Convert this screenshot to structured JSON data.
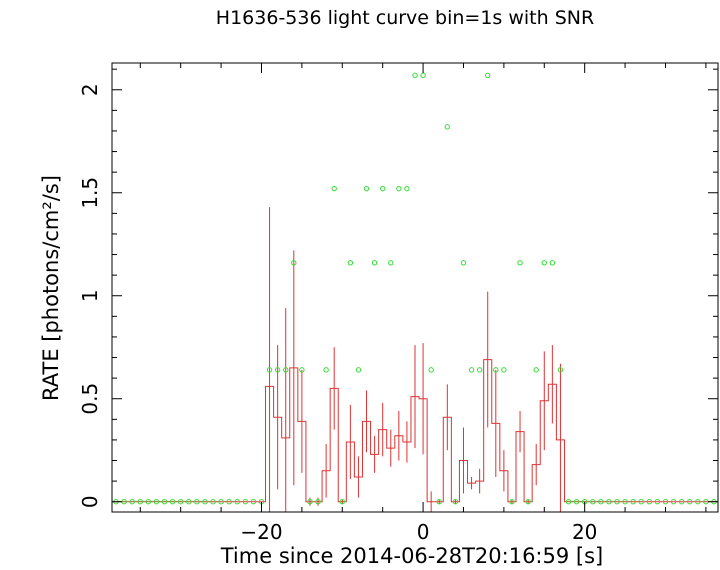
{
  "chart_data": {
    "type": "step-errorbar-scatter",
    "title": "H1636-536 light curve bin=1s with SNR",
    "xlabel": "Time since 2014-06-28T20:16:59 [s]",
    "ylabel": "RATE [photons/cm²/s]",
    "xlim": [
      -38.5,
      36.5
    ],
    "ylim": [
      -0.05,
      2.13
    ],
    "x_ticks": [
      -20,
      0,
      20
    ],
    "x_tick_labels": [
      "−20",
      "0",
      "20"
    ],
    "y_ticks": [
      0,
      0.5,
      1,
      1.5,
      2
    ],
    "y_tick_labels": [
      "0",
      "0.5",
      "1",
      "1.5",
      "2"
    ],
    "grid": false,
    "colors": {
      "rate": "#dd3333",
      "snr": "#33dd33",
      "axes": "#000000"
    },
    "series": [
      {
        "kind": "step-with-errorbars",
        "bin_width": 1,
        "x": [
          -19,
          -18,
          -17,
          -16,
          -15,
          -14,
          -13,
          -12,
          -11,
          -10,
          -9,
          -8,
          -7,
          -6,
          -5,
          -4,
          -3,
          -2,
          -1,
          0,
          1,
          2,
          3,
          4,
          5,
          6,
          7,
          8,
          9,
          10,
          11,
          12,
          13,
          14,
          15,
          16,
          17
        ],
        "values": [
          0.56,
          0.41,
          0.31,
          0.65,
          0.39,
          0.0,
          0.0,
          0.15,
          0.55,
          0.0,
          0.29,
          0.12,
          0.39,
          0.23,
          0.35,
          0.26,
          0.32,
          0.29,
          0.51,
          0.5,
          0.0,
          0.0,
          0.41,
          0.0,
          0.2,
          0.09,
          0.1,
          0.69,
          0.38,
          0.15,
          0.0,
          0.34,
          0.0,
          0.18,
          0.49,
          0.57,
          0.3
        ],
        "errors": [
          0.87,
          0.35,
          0.63,
          0.57,
          0.25,
          0.02,
          0.02,
          0.13,
          0.2,
          0.01,
          0.18,
          0.1,
          0.15,
          0.09,
          0.13,
          0.09,
          0.12,
          0.1,
          0.25,
          0.27,
          0.05,
          0.01,
          0.16,
          0.01,
          0.16,
          0.03,
          0.06,
          0.33,
          0.26,
          0.1,
          0.01,
          0.1,
          0.01,
          0.1,
          0.24,
          0.19,
          0.37
        ]
      },
      {
        "kind": "scatter",
        "marker": "open-circle",
        "x": [
          -38,
          -37,
          -36,
          -35,
          -34,
          -33,
          -32,
          -31,
          -30,
          -29,
          -28,
          -27,
          -26,
          -25,
          -24,
          -23,
          -22,
          -21,
          -20,
          -19,
          -18,
          -17,
          -16,
          -15,
          -14,
          -13,
          -12,
          -11,
          -10,
          -9,
          -8,
          -7,
          -6,
          -5,
          -4,
          -3,
          -2,
          -1,
          0,
          1,
          2,
          3,
          4,
          5,
          6,
          7,
          8,
          9,
          10,
          11,
          12,
          13,
          14,
          15,
          16,
          17,
          18,
          19,
          20,
          21,
          22,
          23,
          24,
          25,
          26,
          27,
          28,
          29,
          30,
          31,
          32,
          33,
          34,
          35,
          36
        ],
        "values": [
          0,
          0,
          0,
          0,
          0,
          0,
          0,
          0,
          0,
          0,
          0,
          0,
          0,
          0,
          0,
          0,
          0,
          0,
          0,
          0.64,
          0.64,
          0.64,
          1.16,
          0.64,
          0,
          0,
          0.64,
          1.52,
          0,
          1.16,
          0.64,
          1.52,
          1.16,
          1.52,
          1.16,
          1.52,
          1.52,
          2.07,
          2.07,
          0.64,
          0,
          1.82,
          0,
          1.16,
          0.64,
          0.64,
          2.07,
          0.64,
          0.64,
          0,
          1.16,
          0,
          0.64,
          1.16,
          1.16,
          0.64,
          0,
          0,
          0,
          0,
          0,
          0,
          0,
          0,
          0,
          0,
          0,
          0,
          0,
          0,
          0,
          0,
          0,
          0,
          0
        ]
      }
    ]
  }
}
